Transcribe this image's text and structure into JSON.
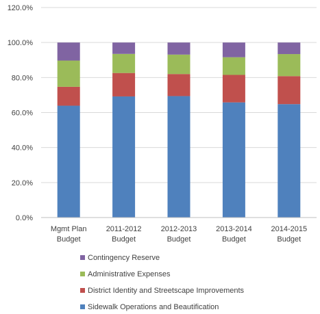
{
  "chart_data": {
    "type": "bar",
    "stacked": true,
    "title": "",
    "xlabel": "",
    "ylabel": "",
    "ylim": [
      0,
      120
    ],
    "y_ticks": [
      "0.0%",
      "20.0%",
      "40.0%",
      "60.0%",
      "80.0%",
      "100.0%",
      "120.0%"
    ],
    "y_tick_values": [
      0,
      20,
      40,
      60,
      80,
      100,
      120
    ],
    "grid": true,
    "legend_position": "bottom",
    "categories": [
      [
        "Mgmt Plan",
        "Budget"
      ],
      [
        "2011-2012",
        "Budget"
      ],
      [
        "2012-2013",
        "Budget"
      ],
      [
        "2013-2014",
        "Budget"
      ],
      [
        "2014-2015",
        "Budget"
      ]
    ],
    "series": [
      {
        "name": "Sidewalk Operations and Beautification",
        "color": "#4F81BD",
        "values": [
          63.9,
          69.2,
          69.4,
          65.8,
          64.8
        ]
      },
      {
        "name": "District Identity and Streetscape Improvements",
        "color": "#C0504D",
        "values": [
          10.8,
          13.4,
          12.6,
          15.7,
          16.0
        ]
      },
      {
        "name": "Administrative Expenses",
        "color": "#9BBB59",
        "values": [
          15.0,
          10.9,
          11.1,
          10.1,
          12.6
        ]
      },
      {
        "name": "Contingency Reserve",
        "color": "#8064A2",
        "values": [
          10.3,
          6.5,
          6.9,
          8.4,
          6.6
        ]
      }
    ]
  }
}
